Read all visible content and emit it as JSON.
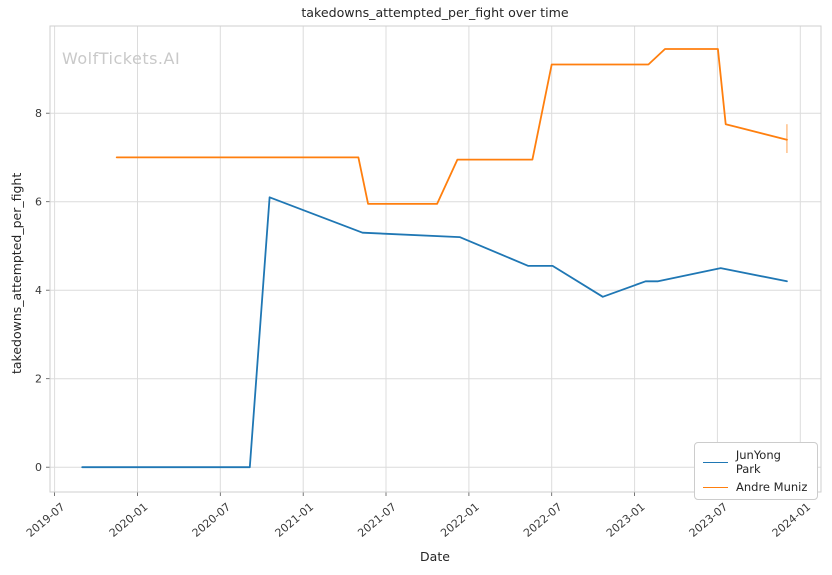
{
  "figure": {
    "watermark": "WolfTickets.AI"
  },
  "chart_data": {
    "type": "line",
    "title": "takedowns_attempted_per_fight over time",
    "xlabel": "Date",
    "ylabel": "takedowns_attempted_per_fight",
    "grid": true,
    "legend_position": "lower right",
    "x_tick_labels": [
      "2019-07",
      "2020-01",
      "2020-07",
      "2021-01",
      "2021-07",
      "2022-01",
      "2022-07",
      "2023-01",
      "2023-07",
      "2024-01"
    ],
    "y_ticks": [
      0,
      2,
      4,
      6,
      8
    ],
    "xlim": [
      "2019-06-21",
      "2024-02-16"
    ],
    "ylim": [
      -0.56,
      9.97
    ],
    "series": [
      {
        "name": "JunYong Park",
        "color": "#1f77b4",
        "points": [
          [
            "2019-09-01",
            0.0
          ],
          [
            "2020-09-05",
            0.0
          ],
          [
            "2020-10-18",
            6.1
          ],
          [
            "2021-05-10",
            5.3
          ],
          [
            "2021-12-11",
            5.2
          ],
          [
            "2022-05-10",
            4.55
          ],
          [
            "2022-07-03",
            4.55
          ],
          [
            "2022-10-22",
            3.85
          ],
          [
            "2023-01-25",
            4.2
          ],
          [
            "2023-02-22",
            4.2
          ],
          [
            "2023-07-08",
            4.5
          ],
          [
            "2023-12-02",
            4.2
          ]
        ]
      },
      {
        "name": "Andre Muniz",
        "color": "#ff7f0e",
        "points": [
          [
            "2019-11-16",
            7.0
          ],
          [
            "2021-05-01",
            7.0
          ],
          [
            "2021-05-22",
            5.95
          ],
          [
            "2021-10-22",
            5.95
          ],
          [
            "2021-12-06",
            6.95
          ],
          [
            "2022-05-19",
            6.95
          ],
          [
            "2022-07-01",
            9.1
          ],
          [
            "2023-02-01",
            9.1
          ],
          [
            "2023-03-07",
            9.45
          ],
          [
            "2023-07-02",
            9.45
          ],
          [
            "2023-07-19",
            7.75
          ],
          [
            "2023-12-02",
            7.4
          ]
        ]
      }
    ],
    "error_bar": {
      "series": "Andre Muniz",
      "date": "2023-12-02",
      "low": 7.1,
      "high": 7.75
    }
  }
}
